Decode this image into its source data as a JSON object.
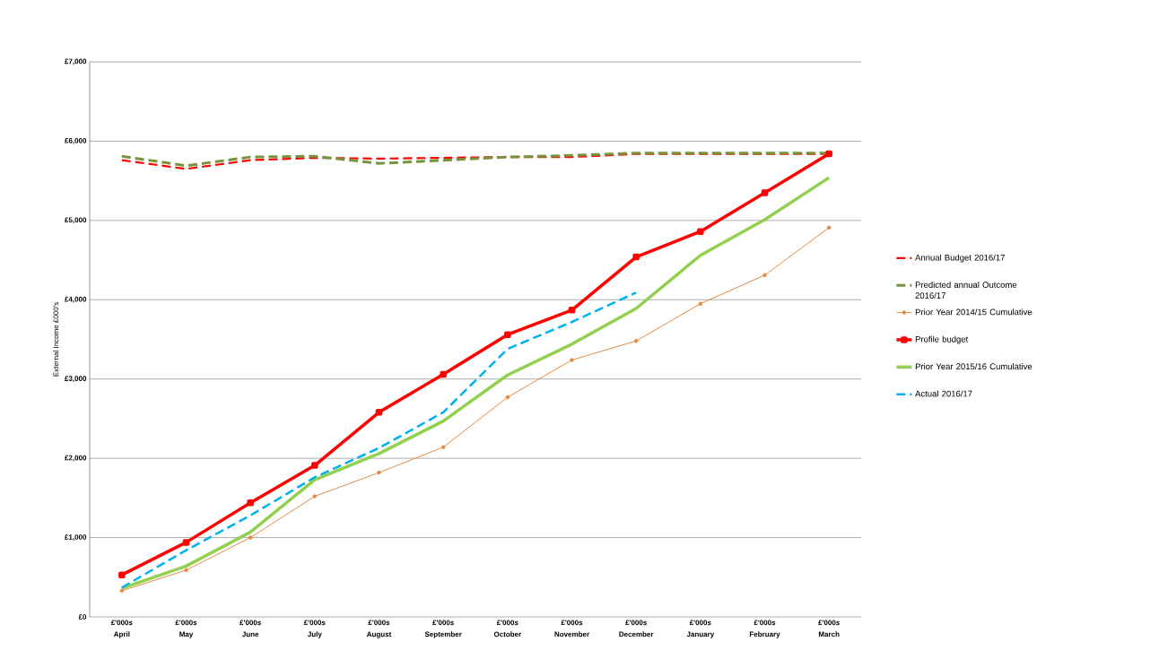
{
  "chart_data": {
    "type": "line",
    "ylabel": "External Income £000's",
    "categories": [
      "£'000s April",
      "£'000s May",
      "£'000s June",
      "£'000s July",
      "£'000s August",
      "£'000s September",
      "£'000s October",
      "£'000s November",
      "£'000s December",
      "£'000s January",
      "£'000s February",
      "£'000s March"
    ],
    "ylim": [
      0,
      7000
    ],
    "yticks": [
      {
        "value": 0,
        "label": "£0"
      },
      {
        "value": 1000,
        "label": "£1,000"
      },
      {
        "value": 2000,
        "label": "£2,000"
      },
      {
        "value": 3000,
        "label": "£3,000"
      },
      {
        "value": 4000,
        "label": "£4,000"
      },
      {
        "value": 5000,
        "label": "£5,000"
      },
      {
        "value": 6000,
        "label": "£6,000"
      },
      {
        "value": 7000,
        "label": "£7,000"
      }
    ],
    "grid": "y",
    "legend": "right",
    "series": [
      {
        "name": "Annual Budget 2016/17",
        "color": "#ff0000",
        "line_style": "dashed",
        "marker": "none",
        "values": [
          5760,
          5650,
          5760,
          5790,
          5780,
          5790,
          5800,
          5800,
          5840,
          5840,
          5840,
          5840
        ]
      },
      {
        "name": "Predicted annual Outcome 2016/17",
        "color": "#77933c",
        "line_style": "dashed",
        "marker": "none",
        "values": [
          5810,
          5690,
          5800,
          5810,
          5720,
          5760,
          5800,
          5820,
          5850,
          5850,
          5850,
          5850
        ]
      },
      {
        "name": "Prior Year 2014/15 Cumulative",
        "color": "#e38b44",
        "line_style": "solid",
        "marker": "circle",
        "values": [
          330,
          590,
          1000,
          1520,
          1820,
          2140,
          2770,
          3240,
          3480,
          3950,
          4310,
          4910
        ]
      },
      {
        "name": "Profile budget",
        "color": "#ff0000",
        "line_style": "solid",
        "marker": "square",
        "values": [
          530,
          940,
          1440,
          1910,
          2580,
          3060,
          3560,
          3870,
          4540,
          4860,
          5350,
          5840
        ]
      },
      {
        "name": "Prior Year 2015/16 Cumulative",
        "color": "#92d050",
        "line_style": "solid",
        "marker": "none",
        "values": [
          360,
          640,
          1070,
          1730,
          2060,
          2470,
          3050,
          3440,
          3890,
          4560,
          5010,
          5540
        ]
      },
      {
        "name": "Actual 2016/17",
        "color": "#00b0f0",
        "line_style": "dashed",
        "marker": "none",
        "values": [
          370,
          840,
          1280,
          1760,
          2130,
          2580,
          3380,
          3720,
          4090,
          null,
          null,
          null
        ]
      }
    ]
  }
}
